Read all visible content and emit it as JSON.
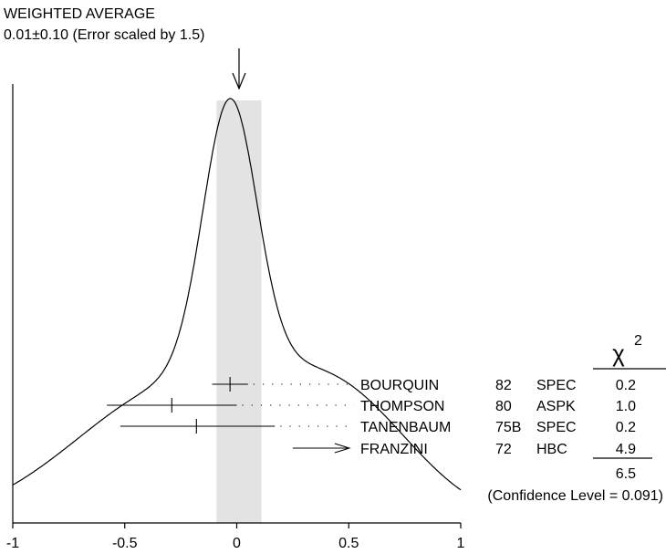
{
  "chart_data": {
    "type": "ideogram",
    "title": "WEIGHTED AVERAGE",
    "subtitle": "0.01±0.10 (Error scaled by 1.5)",
    "weighted_average": {
      "value": 0.01,
      "error": 0.1,
      "scale_factor": 1.5
    },
    "xlim": [
      -1,
      1
    ],
    "x_ticks": [
      {
        "value": -1,
        "label": "-1"
      },
      {
        "value": -0.5,
        "label": "-0.5"
      },
      {
        "value": 0,
        "label": "0"
      },
      {
        "value": 0.5,
        "label": "0.5"
      },
      {
        "value": 1,
        "label": "1"
      }
    ],
    "measurements": [
      {
        "author": "BOURQUIN",
        "year": "82",
        "tech": "SPEC",
        "value": -0.03,
        "low": -0.11,
        "high": 0.05,
        "chi2": "0.2",
        "arrow": false
      },
      {
        "author": "THOMPSON",
        "year": "80",
        "tech": "ASPK",
        "value": -0.29,
        "low": -0.58,
        "high": 0.0,
        "chi2": "1.0",
        "arrow": false
      },
      {
        "author": "TANENBAUM",
        "year": "75B",
        "tech": "SPEC",
        "value": -0.18,
        "low": -0.52,
        "high": 0.17,
        "chi2": "0.2",
        "arrow": false
      },
      {
        "author": "FRANZINI",
        "year": "72",
        "tech": "HBC",
        "value": 0.47,
        "low": 0.25,
        "high": 0.47,
        "chi2": "4.9",
        "arrow": true
      }
    ],
    "chi2_header": "χ",
    "chi2_exponent": "2",
    "chi2_total": "6.5",
    "confidence_level": "(Confidence Level = 0.091)"
  }
}
